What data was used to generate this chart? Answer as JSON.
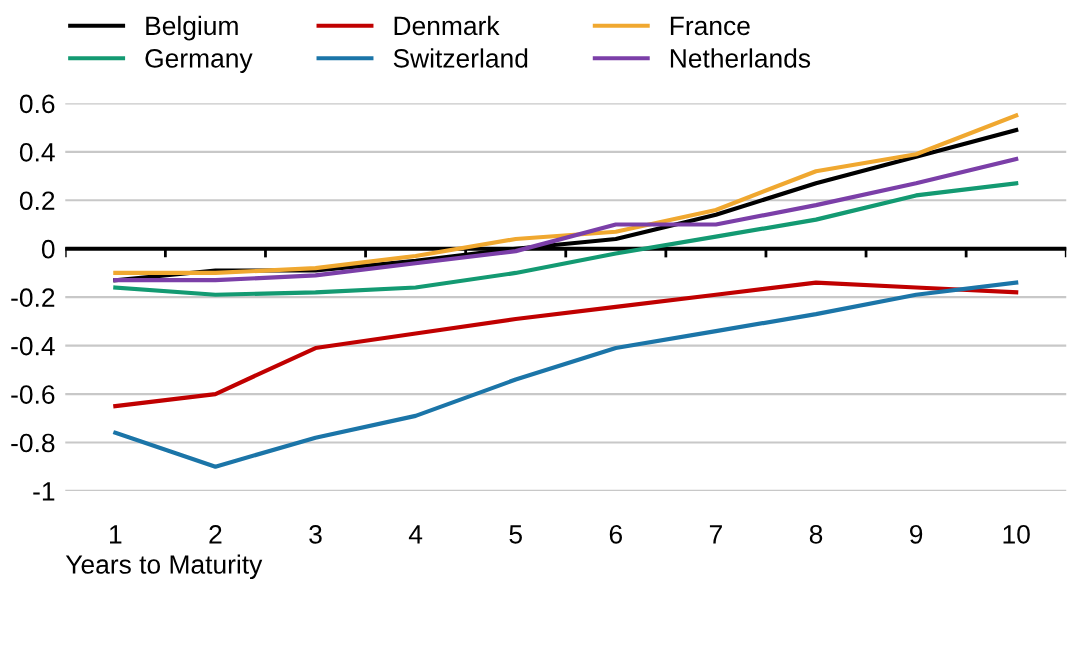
{
  "chart_data": {
    "type": "line",
    "xlabel": "Years to Maturity",
    "categories": [
      "1",
      "2",
      "3",
      "4",
      "5",
      "6",
      "7",
      "8",
      "9",
      "10"
    ],
    "ylim": [
      -1,
      0.6
    ],
    "yticks": [
      {
        "value": -1,
        "label": "-1"
      },
      {
        "value": -0.8,
        "label": "-0.8"
      },
      {
        "value": -0.6,
        "label": "-0.6"
      },
      {
        "value": -0.4,
        "label": "-0.4"
      },
      {
        "value": -0.2,
        "label": "-0.2"
      },
      0,
      0.2,
      0.4,
      0.6
    ],
    "grid": "y",
    "legend": "top",
    "marker": "none",
    "line_style": "solid",
    "ref_lines": [
      {
        "axis": "y",
        "value": 0,
        "color": "#000000"
      }
    ],
    "series": [
      {
        "name": "Belgium",
        "color": "#000000",
        "values": [
          -0.13,
          -0.09,
          -0.09,
          -0.05,
          0.0,
          0.04,
          0.14,
          0.27,
          0.38,
          0.49
        ]
      },
      {
        "name": "Denmark",
        "color": "#c00000",
        "values": [
          -0.65,
          -0.6,
          -0.41,
          -0.35,
          -0.29,
          -0.24,
          -0.19,
          -0.14,
          -0.16,
          -0.18
        ]
      },
      {
        "name": "France",
        "color": "#f0a830",
        "values": [
          -0.1,
          -0.1,
          -0.08,
          -0.03,
          0.04,
          0.07,
          0.16,
          0.32,
          0.39,
          0.55
        ]
      },
      {
        "name": "Germany",
        "color": "#139a72",
        "values": [
          -0.16,
          -0.19,
          -0.18,
          -0.16,
          -0.1,
          -0.02,
          0.05,
          0.12,
          0.22,
          0.27
        ]
      },
      {
        "name": "Switzerland",
        "color": "#1b75a8",
        "values": [
          -0.76,
          -0.9,
          -0.78,
          -0.69,
          -0.54,
          -0.41,
          -0.34,
          -0.27,
          -0.19,
          -0.14
        ]
      },
      {
        "name": "Netherlands",
        "color": "#7b3fa8",
        "values": [
          -0.13,
          -0.13,
          -0.11,
          -0.06,
          -0.01,
          0.1,
          0.1,
          0.18,
          0.27,
          0.37
        ]
      }
    ]
  }
}
